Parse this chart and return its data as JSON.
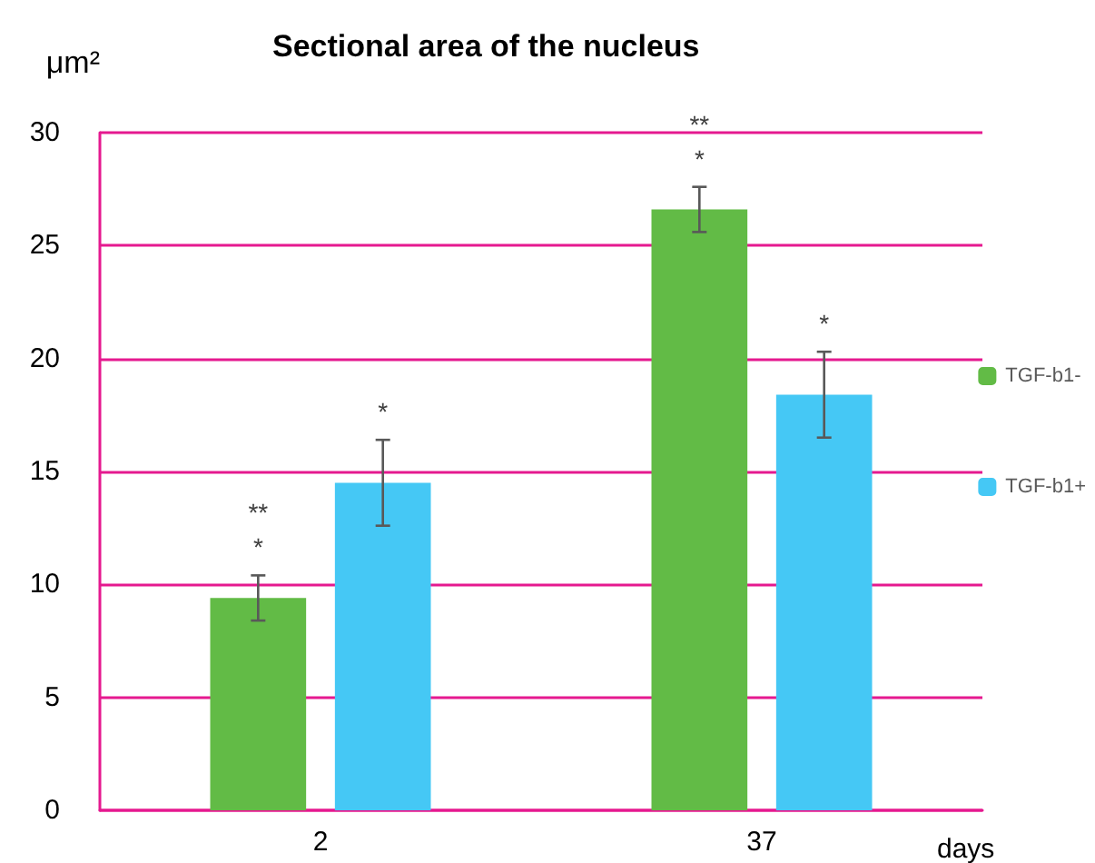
{
  "chart_data": {
    "type": "bar",
    "title": "Sectional area of the nucleus",
    "ylabel": "μm²",
    "xlabel": "days",
    "categories": [
      "2",
      "37"
    ],
    "series": [
      {
        "name": "TGF-b1-",
        "color": "#62bb46",
        "values": [
          9.4,
          26.6
        ],
        "errors": [
          1.0,
          1.0
        ]
      },
      {
        "name": "TGF-b1+",
        "color": "#45c8f5",
        "values": [
          14.5,
          18.4
        ],
        "errors": [
          1.9,
          1.9
        ]
      }
    ],
    "annotations": [
      "**\n*",
      "*",
      "**\n*",
      "*"
    ],
    "ylim": [
      0,
      30
    ],
    "yticks": [
      0,
      5,
      10,
      15,
      20,
      25,
      30
    ],
    "grid": "y",
    "legend": "right"
  }
}
